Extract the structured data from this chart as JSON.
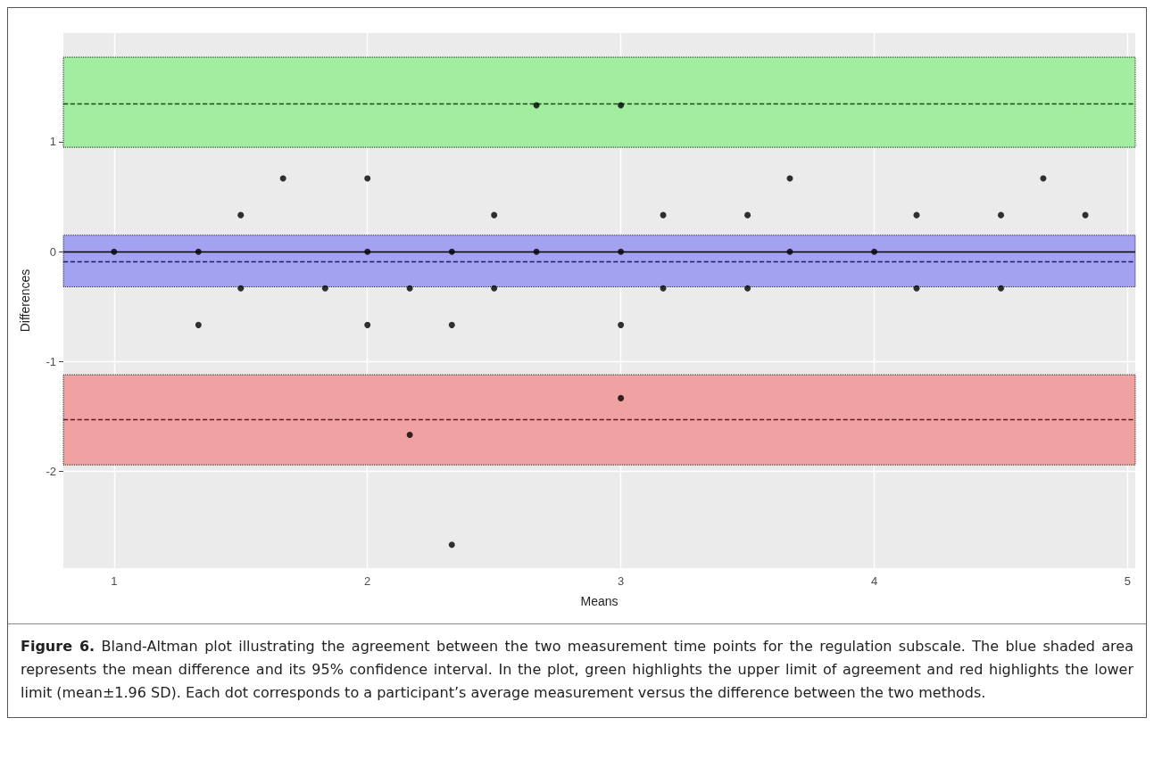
{
  "chart_data": {
    "type": "scatter",
    "xlabel": "Means",
    "ylabel": "Differences",
    "x": [
      1,
      1.333,
      1.333,
      1.5,
      1.5,
      1.667,
      1.833,
      2,
      2,
      2,
      2.167,
      2.167,
      2.333,
      2.333,
      2.333,
      2.5,
      2.5,
      2.667,
      2.667,
      3,
      3,
      3,
      3,
      3.167,
      3.167,
      3.5,
      3.5,
      3.667,
      3.667,
      4,
      4.167,
      4.167,
      4.5,
      4.5,
      4.667,
      4.833
    ],
    "series": [
      {
        "color": "#000000",
        "values": [
          0,
          0,
          -0.667,
          0.333,
          -0.333,
          0.667,
          -0.333,
          0.667,
          0,
          -0.667,
          -0.333,
          -1.667,
          0,
          -0.667,
          -2.667,
          0.333,
          -0.333,
          1.333,
          0,
          1.333,
          0,
          -0.667,
          -1.333,
          0.333,
          -0.333,
          0.333,
          -0.333,
          0.667,
          0,
          0,
          0.333,
          -0.333,
          0.333,
          -0.333,
          0.667,
          0.333
        ]
      }
    ],
    "xlim": [
      0.8,
      5.03
    ],
    "ylim": [
      -2.88,
      1.99
    ],
    "xticks": [
      1,
      2,
      3,
      4,
      5
    ],
    "yticks": [
      -2,
      -1,
      0,
      1
    ],
    "grid": true,
    "marker": "circle",
    "bands": [
      {
        "axis": "y",
        "from": 0.95,
        "to": 1.77,
        "color": "#a3eda0"
      },
      {
        "axis": "y",
        "from": -0.32,
        "to": 0.15,
        "color": "#a2a2f0"
      },
      {
        "axis": "y",
        "from": -1.94,
        "to": -1.12,
        "color": "#f0a2a2"
      }
    ],
    "ref_lines": [
      {
        "axis": "y",
        "value": 0,
        "color": "#000000",
        "line_style": "solid"
      },
      {
        "axis": "y",
        "value": 1.35,
        "color": "#1e4a1e",
        "line_style": "dashed"
      },
      {
        "axis": "y",
        "value": -0.09,
        "color": "#1e1e5a",
        "line_style": "dashed"
      },
      {
        "axis": "y",
        "value": -1.53,
        "color": "#5a1e1e",
        "line_style": "dashed"
      }
    ],
    "annotations": [
      "Figure 6. Bland-Altman plot illustrating the agreement between the two measurement time points for the regulation subscale. The blue shaded area represents the mean difference and its 95% confidence interval. In the plot, green highlights the upper limit of agreement and red highlights the lower limit (mean±1.96 SD). Each dot corresponds to a participant’s average measurement versus the difference between the two methods."
    ]
  }
}
